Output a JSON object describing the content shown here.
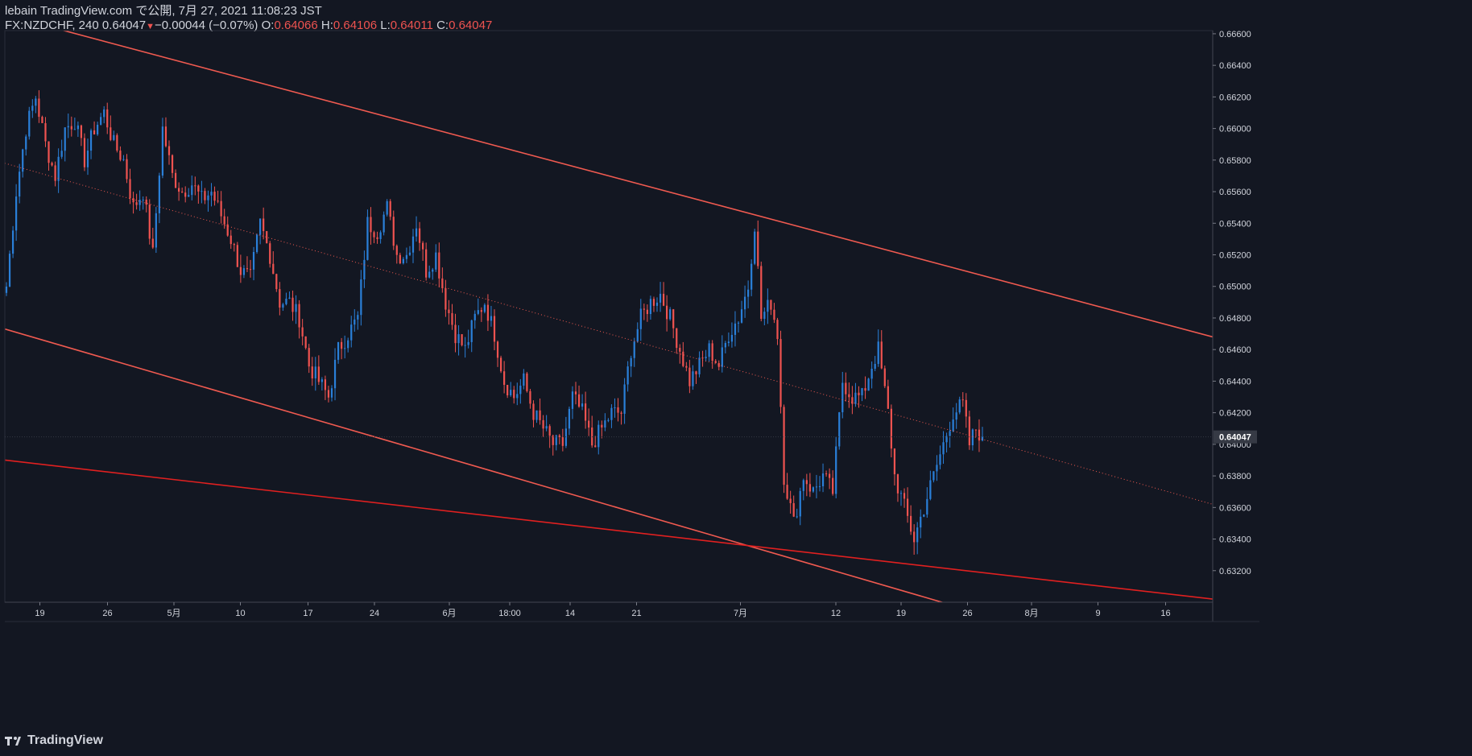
{
  "header": {
    "line1": "lebain TradingView.com で公開, 7月 27, 2021 11:08:23 JST",
    "symbol": "FX:NZDCHF, 240",
    "last": "0.64047",
    "change_arrow": "▼",
    "change": "−0.00044 (−0.07%)",
    "o_label": "O:",
    "o_value": "0.64066",
    "h_label": "H:",
    "h_value": "0.64106",
    "l_label": "L:",
    "l_value": "0.64011",
    "c_label": "C:",
    "c_value": "0.64047"
  },
  "footer": {
    "brand": "TradingView"
  },
  "colors": {
    "background": "#131722",
    "up": "#2a7fd8",
    "down": "#ef5350",
    "channel": "#f05a50",
    "support": "#e02020",
    "axis_text": "#d1d4dc",
    "price_label_bg": "#363a45"
  },
  "chart_data": {
    "type": "candlestick",
    "title": "FX:NZDCHF, 240",
    "ylim": [
      0.63,
      0.6662
    ],
    "y_ticks": [
      "0.66600",
      "0.66400",
      "0.66200",
      "0.66000",
      "0.65800",
      "0.65600",
      "0.65400",
      "0.65200",
      "0.65000",
      "0.64800",
      "0.64600",
      "0.64400",
      "0.64200",
      "0.64000",
      "0.63800",
      "0.63600",
      "0.63400",
      "0.63200"
    ],
    "current_price": "0.64047",
    "x_ticks": [
      {
        "label": "19",
        "t": 0.029
      },
      {
        "label": "26",
        "t": 0.085
      },
      {
        "label": "5月",
        "t": 0.14
      },
      {
        "label": "10",
        "t": 0.195
      },
      {
        "label": "17",
        "t": 0.251
      },
      {
        "label": "24",
        "t": 0.306
      },
      {
        "label": "6月",
        "t": 0.368
      },
      {
        "label": "18:00",
        "t": 0.418
      },
      {
        "label": "14",
        "t": 0.468
      },
      {
        "label": "21",
        "t": 0.523
      },
      {
        "label": "7月",
        "t": 0.609
      },
      {
        "label": "12",
        "t": 0.688
      },
      {
        "label": "19",
        "t": 0.742
      },
      {
        "label": "26",
        "t": 0.797
      },
      {
        "label": "8月",
        "t": 0.85
      },
      {
        "label": "9",
        "t": 0.905
      },
      {
        "label": "16",
        "t": 0.961
      }
    ],
    "series_anchor_closes": [
      [
        0,
        0.65
      ],
      [
        3,
        0.656
      ],
      [
        6,
        0.66
      ],
      [
        9,
        0.662
      ],
      [
        12,
        0.659
      ],
      [
        15,
        0.657
      ],
      [
        18,
        0.66
      ],
      [
        21,
        0.6605
      ],
      [
        24,
        0.658
      ],
      [
        27,
        0.66
      ],
      [
        30,
        0.661
      ],
      [
        33,
        0.659
      ],
      [
        36,
        0.658
      ],
      [
        39,
        0.655
      ],
      [
        42,
        0.656
      ],
      [
        45,
        0.652
      ],
      [
        48,
        0.66
      ],
      [
        51,
        0.657
      ],
      [
        54,
        0.656
      ],
      [
        57,
        0.6565
      ],
      [
        60,
        0.6555
      ],
      [
        63,
        0.656
      ],
      [
        66,
        0.6545
      ],
      [
        69,
        0.653
      ],
      [
        72,
        0.651
      ],
      [
        75,
        0.6505
      ],
      [
        78,
        0.654
      ],
      [
        81,
        0.652
      ],
      [
        84,
        0.649
      ],
      [
        87,
        0.649
      ],
      [
        90,
        0.648
      ],
      [
        93,
        0.645
      ],
      [
        96,
        0.644
      ],
      [
        99,
        0.643
      ],
      [
        102,
        0.646
      ],
      [
        105,
        0.647
      ],
      [
        108,
        0.648
      ],
      [
        111,
        0.654
      ],
      [
        114,
        0.6535
      ],
      [
        117,
        0.655
      ],
      [
        120,
        0.652
      ],
      [
        123,
        0.652
      ],
      [
        126,
        0.654
      ],
      [
        129,
        0.651
      ],
      [
        132,
        0.652
      ],
      [
        135,
        0.649
      ],
      [
        138,
        0.647
      ],
      [
        141,
        0.646
      ],
      [
        144,
        0.648
      ],
      [
        147,
        0.649
      ],
      [
        150,
        0.647
      ],
      [
        153,
        0.644
      ],
      [
        156,
        0.643
      ],
      [
        159,
        0.644
      ],
      [
        162,
        0.642
      ],
      [
        165,
        0.641
      ],
      [
        168,
        0.64
      ],
      [
        171,
        0.64
      ],
      [
        174,
        0.643
      ],
      [
        177,
        0.642
      ],
      [
        180,
        0.64
      ],
      [
        183,
        0.641
      ],
      [
        186,
        0.642
      ],
      [
        189,
        0.642
      ],
      [
        192,
        0.646
      ],
      [
        195,
        0.648
      ],
      [
        198,
        0.649
      ],
      [
        201,
        0.6495
      ],
      [
        204,
        0.648
      ],
      [
        207,
        0.646
      ],
      [
        210,
        0.644
      ],
      [
        213,
        0.645
      ],
      [
        216,
        0.646
      ],
      [
        219,
        0.645
      ],
      [
        222,
        0.647
      ],
      [
        225,
        0.648
      ],
      [
        228,
        0.65
      ],
      [
        230,
        0.654
      ],
      [
        232,
        0.648
      ],
      [
        235,
        0.649
      ],
      [
        237,
        0.647
      ],
      [
        239,
        0.638
      ],
      [
        242,
        0.635
      ],
      [
        245,
        0.638
      ],
      [
        248,
        0.637
      ],
      [
        251,
        0.638
      ],
      [
        254,
        0.637
      ],
      [
        257,
        0.644
      ],
      [
        260,
        0.643
      ],
      [
        263,
        0.643
      ],
      [
        266,
        0.645
      ],
      [
        268,
        0.646
      ],
      [
        271,
        0.642
      ],
      [
        273,
        0.638
      ],
      [
        276,
        0.636
      ],
      [
        279,
        0.634
      ],
      [
        282,
        0.636
      ],
      [
        285,
        0.638
      ],
      [
        288,
        0.64
      ],
      [
        291,
        0.642
      ],
      [
        294,
        0.6425
      ],
      [
        296,
        0.64
      ],
      [
        298,
        0.641
      ],
      [
        300,
        0.64047
      ]
    ],
    "channel_upper": {
      "start": [
        0.0,
        0.6672
      ],
      "end": [
        1.0,
        0.6468
      ]
    },
    "channel_mid": {
      "start": [
        0.0,
        0.6578
      ],
      "end": [
        1.0,
        0.6362
      ],
      "style": "dotted"
    },
    "channel_lower": {
      "start": [
        0.0,
        0.6473
      ],
      "end": [
        1.0,
        0.625
      ]
    },
    "support_line": {
      "start": [
        0.0,
        0.639
      ],
      "end": [
        1.0,
        0.6302
      ]
    }
  }
}
